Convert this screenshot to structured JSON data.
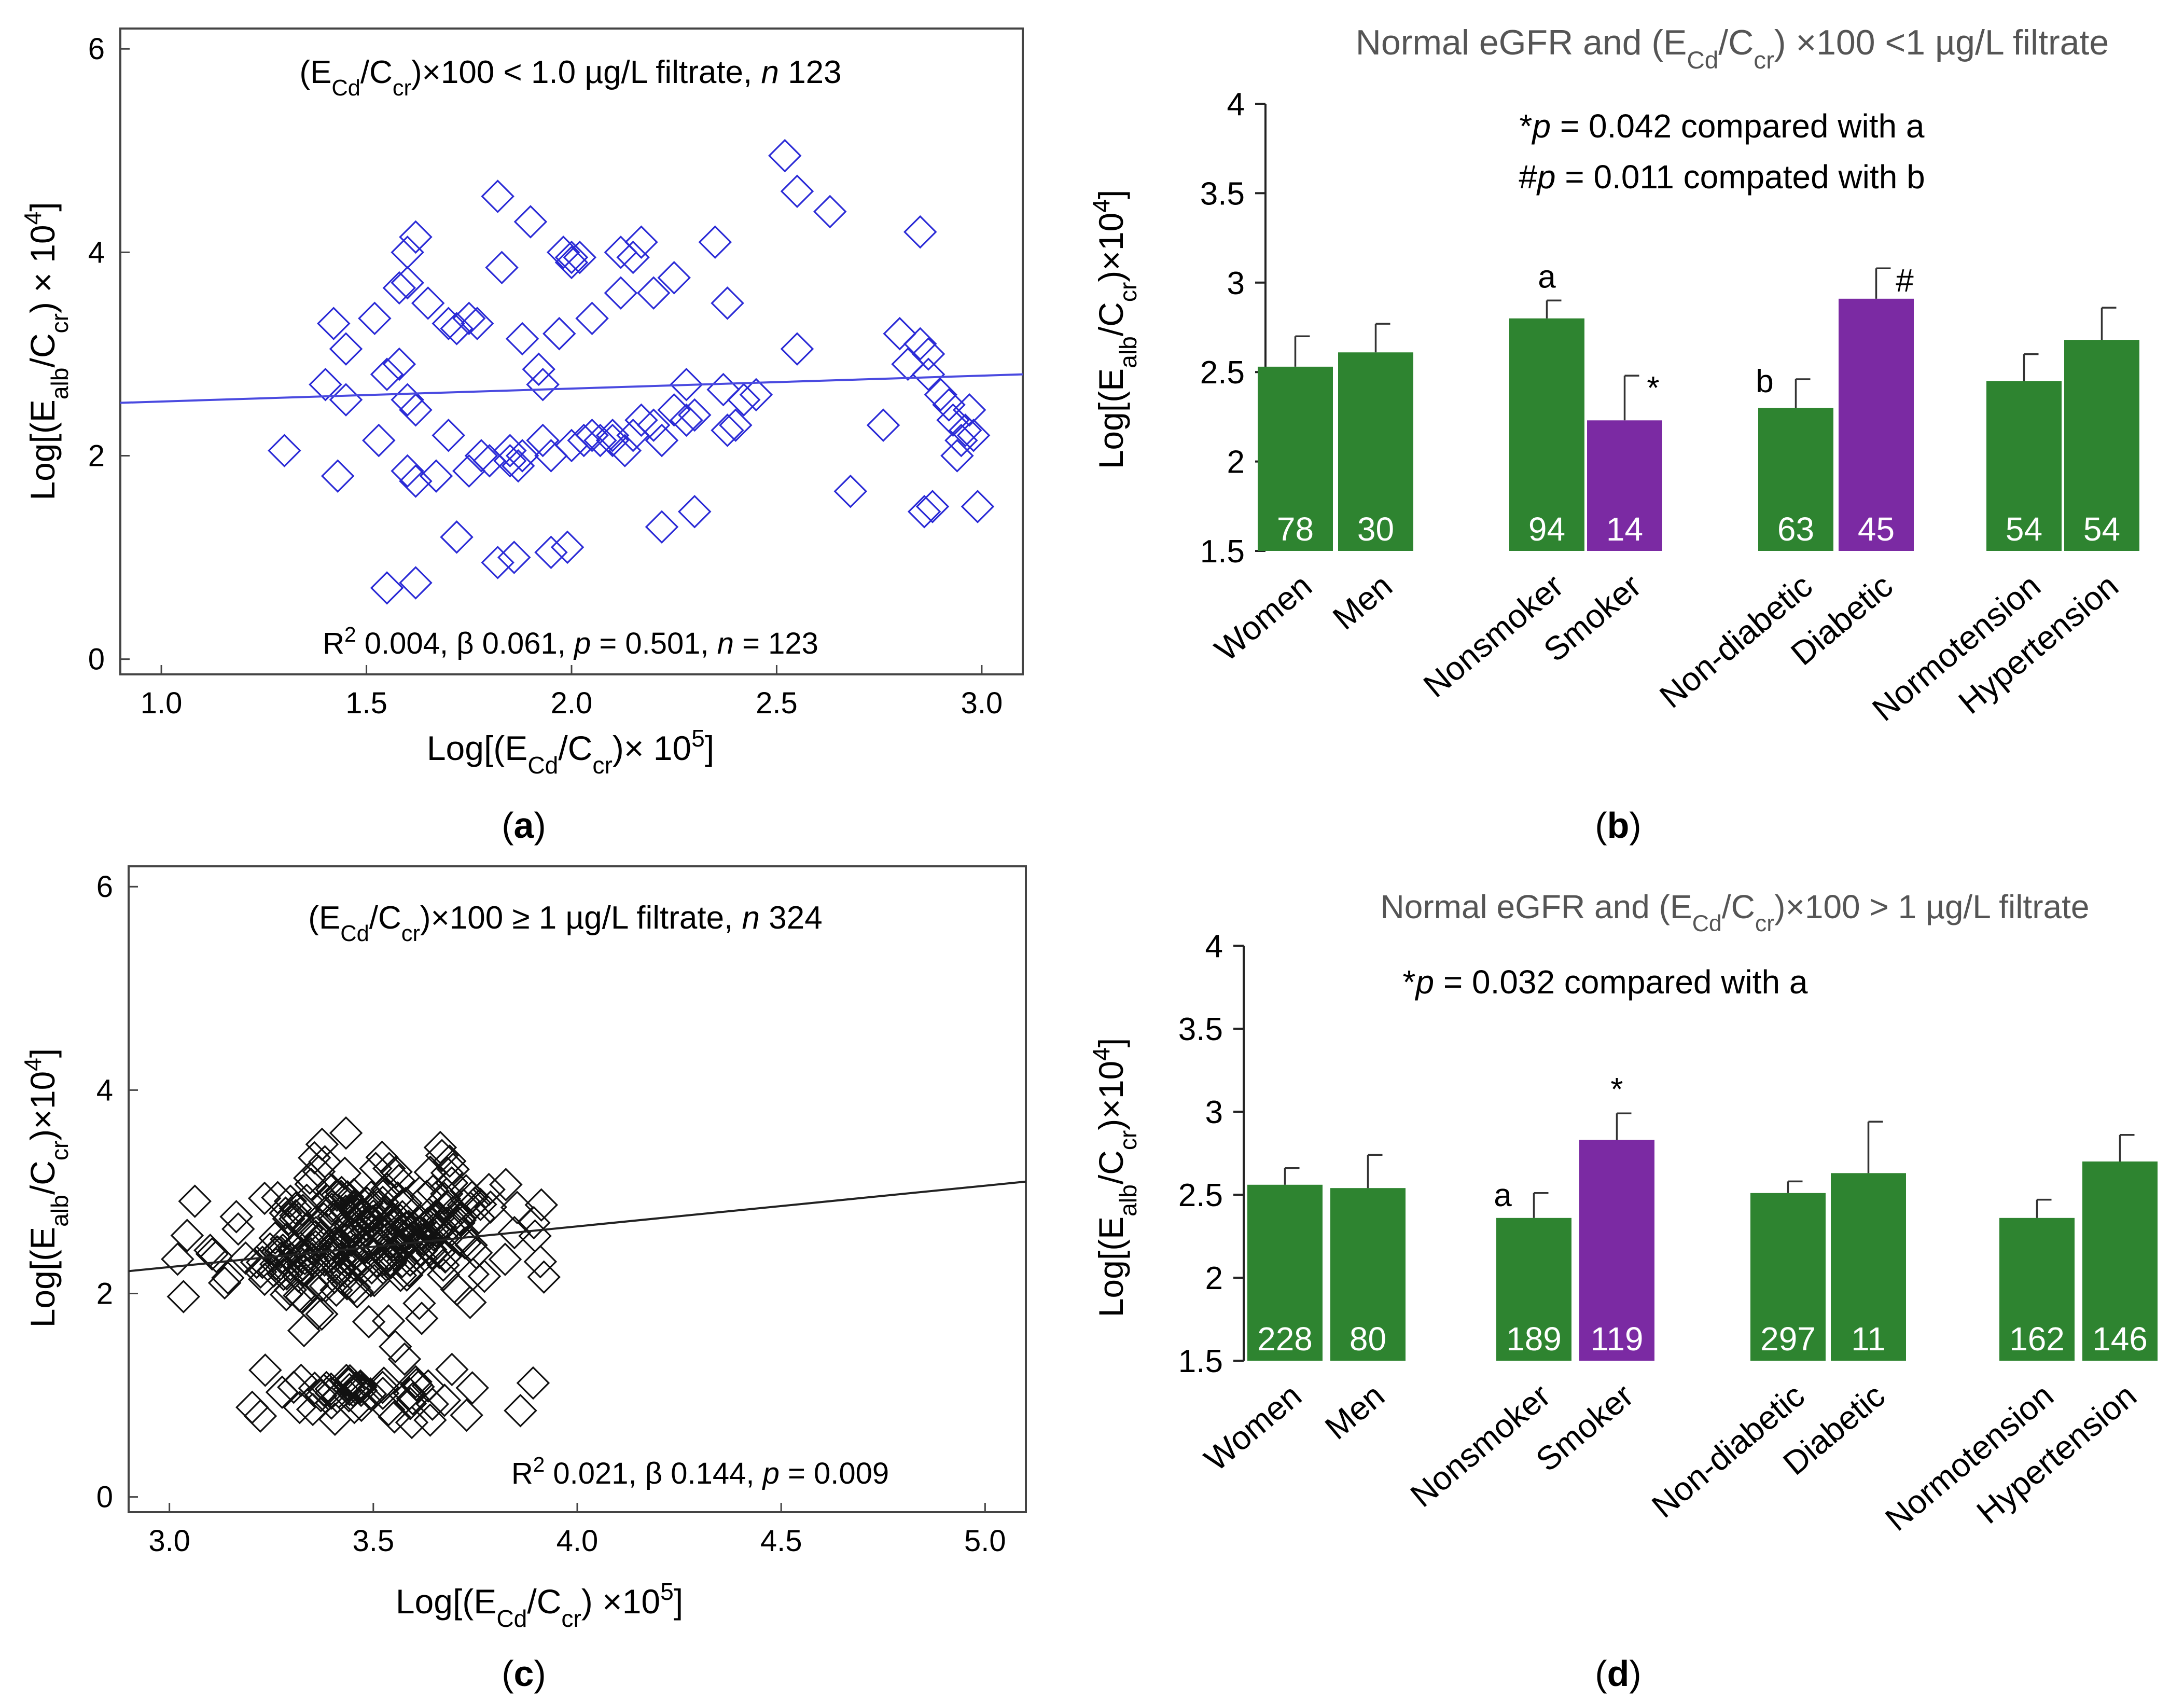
{
  "chart_data": [
    {
      "id": "a",
      "type": "scatter",
      "caption": "a",
      "title_parts": [
        "(E",
        "Cd",
        "/C",
        "cr",
        ")×100 < 1.0 µg/L filtrate, ",
        "n",
        " 123"
      ],
      "stats_parts": [
        "R",
        "2",
        " 0.004, β 0.061, ",
        "p",
        " = 0.501, ",
        "n",
        " = 123"
      ],
      "xlabel_parts": [
        "Log[(E",
        "Cd",
        "/C",
        "cr",
        ")× 10",
        "5",
        "]"
      ],
      "ylabel_parts": [
        "Log[(E",
        "alb",
        "/C",
        "cr",
        ") × 10",
        "4",
        "]"
      ],
      "xticks": [
        "1.0",
        "1.5",
        "2.0",
        "2.5",
        "3.0"
      ],
      "yticks": [
        "0",
        "2",
        "4",
        "6"
      ],
      "xlim": [
        0.9,
        3.1
      ],
      "ylim": [
        -0.15,
        6.2
      ],
      "marker_color": "#2b2bd6",
      "line_color": "#4a4ae0",
      "fit_line": {
        "x": [
          0.9,
          3.1
        ],
        "y": [
          2.52,
          2.8
        ]
      },
      "points": [
        [
          1.3,
          2.05
        ],
        [
          1.42,
          3.3
        ],
        [
          1.45,
          3.05
        ],
        [
          1.4,
          2.7
        ],
        [
          1.45,
          2.55
        ],
        [
          1.43,
          1.8
        ],
        [
          1.52,
          3.35
        ],
        [
          1.53,
          2.15
        ],
        [
          1.55,
          0.7
        ],
        [
          1.58,
          3.65
        ],
        [
          1.6,
          3.7
        ],
        [
          1.6,
          4.0
        ],
        [
          1.62,
          4.15
        ],
        [
          1.55,
          2.8
        ],
        [
          1.58,
          2.9
        ],
        [
          1.6,
          2.55
        ],
        [
          1.62,
          2.45
        ],
        [
          1.6,
          1.85
        ],
        [
          1.62,
          1.75
        ],
        [
          1.62,
          0.75
        ],
        [
          1.65,
          3.5
        ],
        [
          1.67,
          1.8
        ],
        [
          1.7,
          3.3
        ],
        [
          1.72,
          3.25
        ],
        [
          1.75,
          3.35
        ],
        [
          1.77,
          3.3
        ],
        [
          1.7,
          2.2
        ],
        [
          1.75,
          1.85
        ],
        [
          1.72,
          1.2
        ],
        [
          1.78,
          2.0
        ],
        [
          1.8,
          1.95
        ],
        [
          1.82,
          4.55
        ],
        [
          1.83,
          3.85
        ],
        [
          1.85,
          2.05
        ],
        [
          1.85,
          1.95
        ],
        [
          1.87,
          1.9
        ],
        [
          1.88,
          2.0
        ],
        [
          1.82,
          0.95
        ],
        [
          1.86,
          1.0
        ],
        [
          1.88,
          3.15
        ],
        [
          1.9,
          4.3
        ],
        [
          1.92,
          2.85
        ],
        [
          1.93,
          2.7
        ],
        [
          1.93,
          2.15
        ],
        [
          1.95,
          2.0
        ],
        [
          1.95,
          1.05
        ],
        [
          1.97,
          3.2
        ],
        [
          1.98,
          4.0
        ],
        [
          2.0,
          3.95
        ],
        [
          2.0,
          3.9
        ],
        [
          2.02,
          3.95
        ],
        [
          2.0,
          2.1
        ],
        [
          2.03,
          2.15
        ],
        [
          1.99,
          1.1
        ],
        [
          2.05,
          3.35
        ],
        [
          2.05,
          2.2
        ],
        [
          2.07,
          2.15
        ],
        [
          2.1,
          2.2
        ],
        [
          2.1,
          2.15
        ],
        [
          2.12,
          3.6
        ],
        [
          2.12,
          4.0
        ],
        [
          2.15,
          3.95
        ],
        [
          2.13,
          2.05
        ],
        [
          2.15,
          2.2
        ],
        [
          2.17,
          4.1
        ],
        [
          2.17,
          2.35
        ],
        [
          2.2,
          3.6
        ],
        [
          2.2,
          2.3
        ],
        [
          2.22,
          2.15
        ],
        [
          2.22,
          1.3
        ],
        [
          2.25,
          3.75
        ],
        [
          2.25,
          2.45
        ],
        [
          2.28,
          2.35
        ],
        [
          2.28,
          2.7
        ],
        [
          2.3,
          2.4
        ],
        [
          2.3,
          1.45
        ],
        [
          2.35,
          4.1
        ],
        [
          2.37,
          2.65
        ],
        [
          2.38,
          3.5
        ],
        [
          2.38,
          2.25
        ],
        [
          2.4,
          2.3
        ],
        [
          2.42,
          2.55
        ],
        [
          2.45,
          2.6
        ],
        [
          2.52,
          4.95
        ],
        [
          2.55,
          4.6
        ],
        [
          2.55,
          3.05
        ],
        [
          2.63,
          4.4
        ],
        [
          2.68,
          1.65
        ],
        [
          2.76,
          2.3
        ],
        [
          2.8,
          3.2
        ],
        [
          2.82,
          2.9
        ],
        [
          2.85,
          4.2
        ],
        [
          2.85,
          3.1
        ],
        [
          2.87,
          3.0
        ],
        [
          2.87,
          2.8
        ],
        [
          2.86,
          1.45
        ],
        [
          2.88,
          1.5
        ],
        [
          2.9,
          2.6
        ],
        [
          2.92,
          2.5
        ],
        [
          2.93,
          2.35
        ],
        [
          2.95,
          2.15
        ],
        [
          2.97,
          2.45
        ],
        [
          2.96,
          2.25
        ],
        [
          2.98,
          2.2
        ],
        [
          2.94,
          2.0
        ],
        [
          2.99,
          1.5
        ]
      ]
    },
    {
      "id": "b",
      "type": "bar",
      "caption": "b",
      "title_parts": [
        "Normal eGFR  and (E",
        "Cd",
        "/C",
        "cr",
        ") ×100 <1 µg/L filtrate"
      ],
      "ylabel_parts": [
        "Log[(E",
        "alb",
        "/C",
        "cr",
        ")×10",
        "4",
        "]"
      ],
      "yticks": [
        "1.5",
        "2",
        "2.5",
        "3",
        "3.5",
        "4"
      ],
      "ylim": [
        1.5,
        4.0
      ],
      "annotations": [
        {
          "prefix": "*",
          "italic": "p",
          "suffix": " = 0.042 compared with a"
        },
        {
          "prefix": "#",
          "italic": "p",
          "suffix": " = 0.011 compated with b"
        }
      ],
      "colors": {
        "green": "#2e8430",
        "purple": "#7b2aa3"
      },
      "categories": [
        "Women",
        "Men",
        "Nonsmoker",
        "Smoker",
        "Non-diabetic",
        "Diabetic",
        "Normotension",
        "Hypertension"
      ],
      "values": [
        2.53,
        2.61,
        2.8,
        2.23,
        2.3,
        2.91,
        2.45,
        2.68
      ],
      "errors": [
        0.17,
        0.16,
        0.1,
        0.25,
        0.16,
        0.17,
        0.15,
        0.18
      ],
      "n_labels": [
        "78",
        "30",
        "94",
        "14",
        "63",
        "45",
        "54",
        "54"
      ],
      "bar_colors": [
        "green",
        "green",
        "green",
        "purple",
        "green",
        "purple",
        "green",
        "green"
      ],
      "markers": [
        {
          "index": 2,
          "text": "a",
          "side": "top"
        },
        {
          "index": 3,
          "text": "*",
          "side": "top-right"
        },
        {
          "index": 4,
          "text": "b",
          "side": "top-left"
        },
        {
          "index": 5,
          "text": "#",
          "side": "top-right"
        }
      ]
    },
    {
      "id": "c",
      "type": "scatter",
      "caption": "c",
      "title_parts": [
        "(E",
        "Cd",
        "/C",
        "cr",
        ")×100 ≥ 1 µg/L filtrate, ",
        "n",
        " 324"
      ],
      "stats_parts": [
        "R",
        "2",
        " 0.021, β 0.144, ",
        "p",
        " = 0.009",
        "",
        ""
      ],
      "xlabel_parts": [
        "Log[(E",
        "Cd",
        "/C",
        "cr",
        ") ×10",
        "5",
        "]"
      ],
      "ylabel_parts": [
        "Log[(E",
        "alb",
        "/C",
        "cr",
        ")×10",
        "4",
        "]"
      ],
      "xticks": [
        "3.0",
        "3.5",
        "4.0",
        "4.5",
        "5.0"
      ],
      "yticks": [
        "0",
        "2",
        "4",
        "6"
      ],
      "xlim": [
        2.9,
        5.1
      ],
      "ylim": [
        -0.15,
        6.2
      ],
      "marker_color": "#111111",
      "line_color": "#222222",
      "fit_line": {
        "x": [
          2.9,
          5.1
        ],
        "y": [
          2.22,
          3.1
        ]
      }
    },
    {
      "id": "d",
      "type": "bar",
      "caption": "d",
      "title_parts": [
        "Normal eGFR and (E",
        "Cd",
        "/C",
        "cr",
        ")×100 > 1 µg/L filtrate"
      ],
      "ylabel_parts": [
        "Log[(E",
        "alb",
        "/C",
        "cr",
        ")×10",
        "4",
        "]"
      ],
      "yticks": [
        "1.5",
        "2",
        "2.5",
        "3",
        "3.5",
        "4"
      ],
      "ylim": [
        1.5,
        4.0
      ],
      "annotations": [
        {
          "prefix": "*",
          "italic": "p",
          "suffix": " = 0.032 compared with a"
        }
      ],
      "colors": {
        "green": "#2e8430",
        "purple": "#7b2aa3"
      },
      "categories": [
        "Women",
        "Men",
        "Nonsmoker",
        "Smoker",
        "Non-diabetic",
        "Diabetic",
        "Normotension",
        "Hypertension"
      ],
      "values": [
        2.56,
        2.54,
        2.36,
        2.83,
        2.51,
        2.63,
        2.36,
        2.7
      ],
      "errors": [
        0.1,
        0.2,
        0.15,
        0.16,
        0.07,
        0.31,
        0.11,
        0.16
      ],
      "n_labels": [
        "228",
        "80",
        "189",
        "119",
        "297",
        "11",
        "162",
        "146"
      ],
      "bar_colors": [
        "green",
        "green",
        "green",
        "purple",
        "green",
        "green",
        "green",
        "green"
      ],
      "markers": [
        {
          "index": 2,
          "text": "a",
          "side": "top-left"
        },
        {
          "index": 3,
          "text": "*",
          "side": "top"
        }
      ]
    }
  ]
}
